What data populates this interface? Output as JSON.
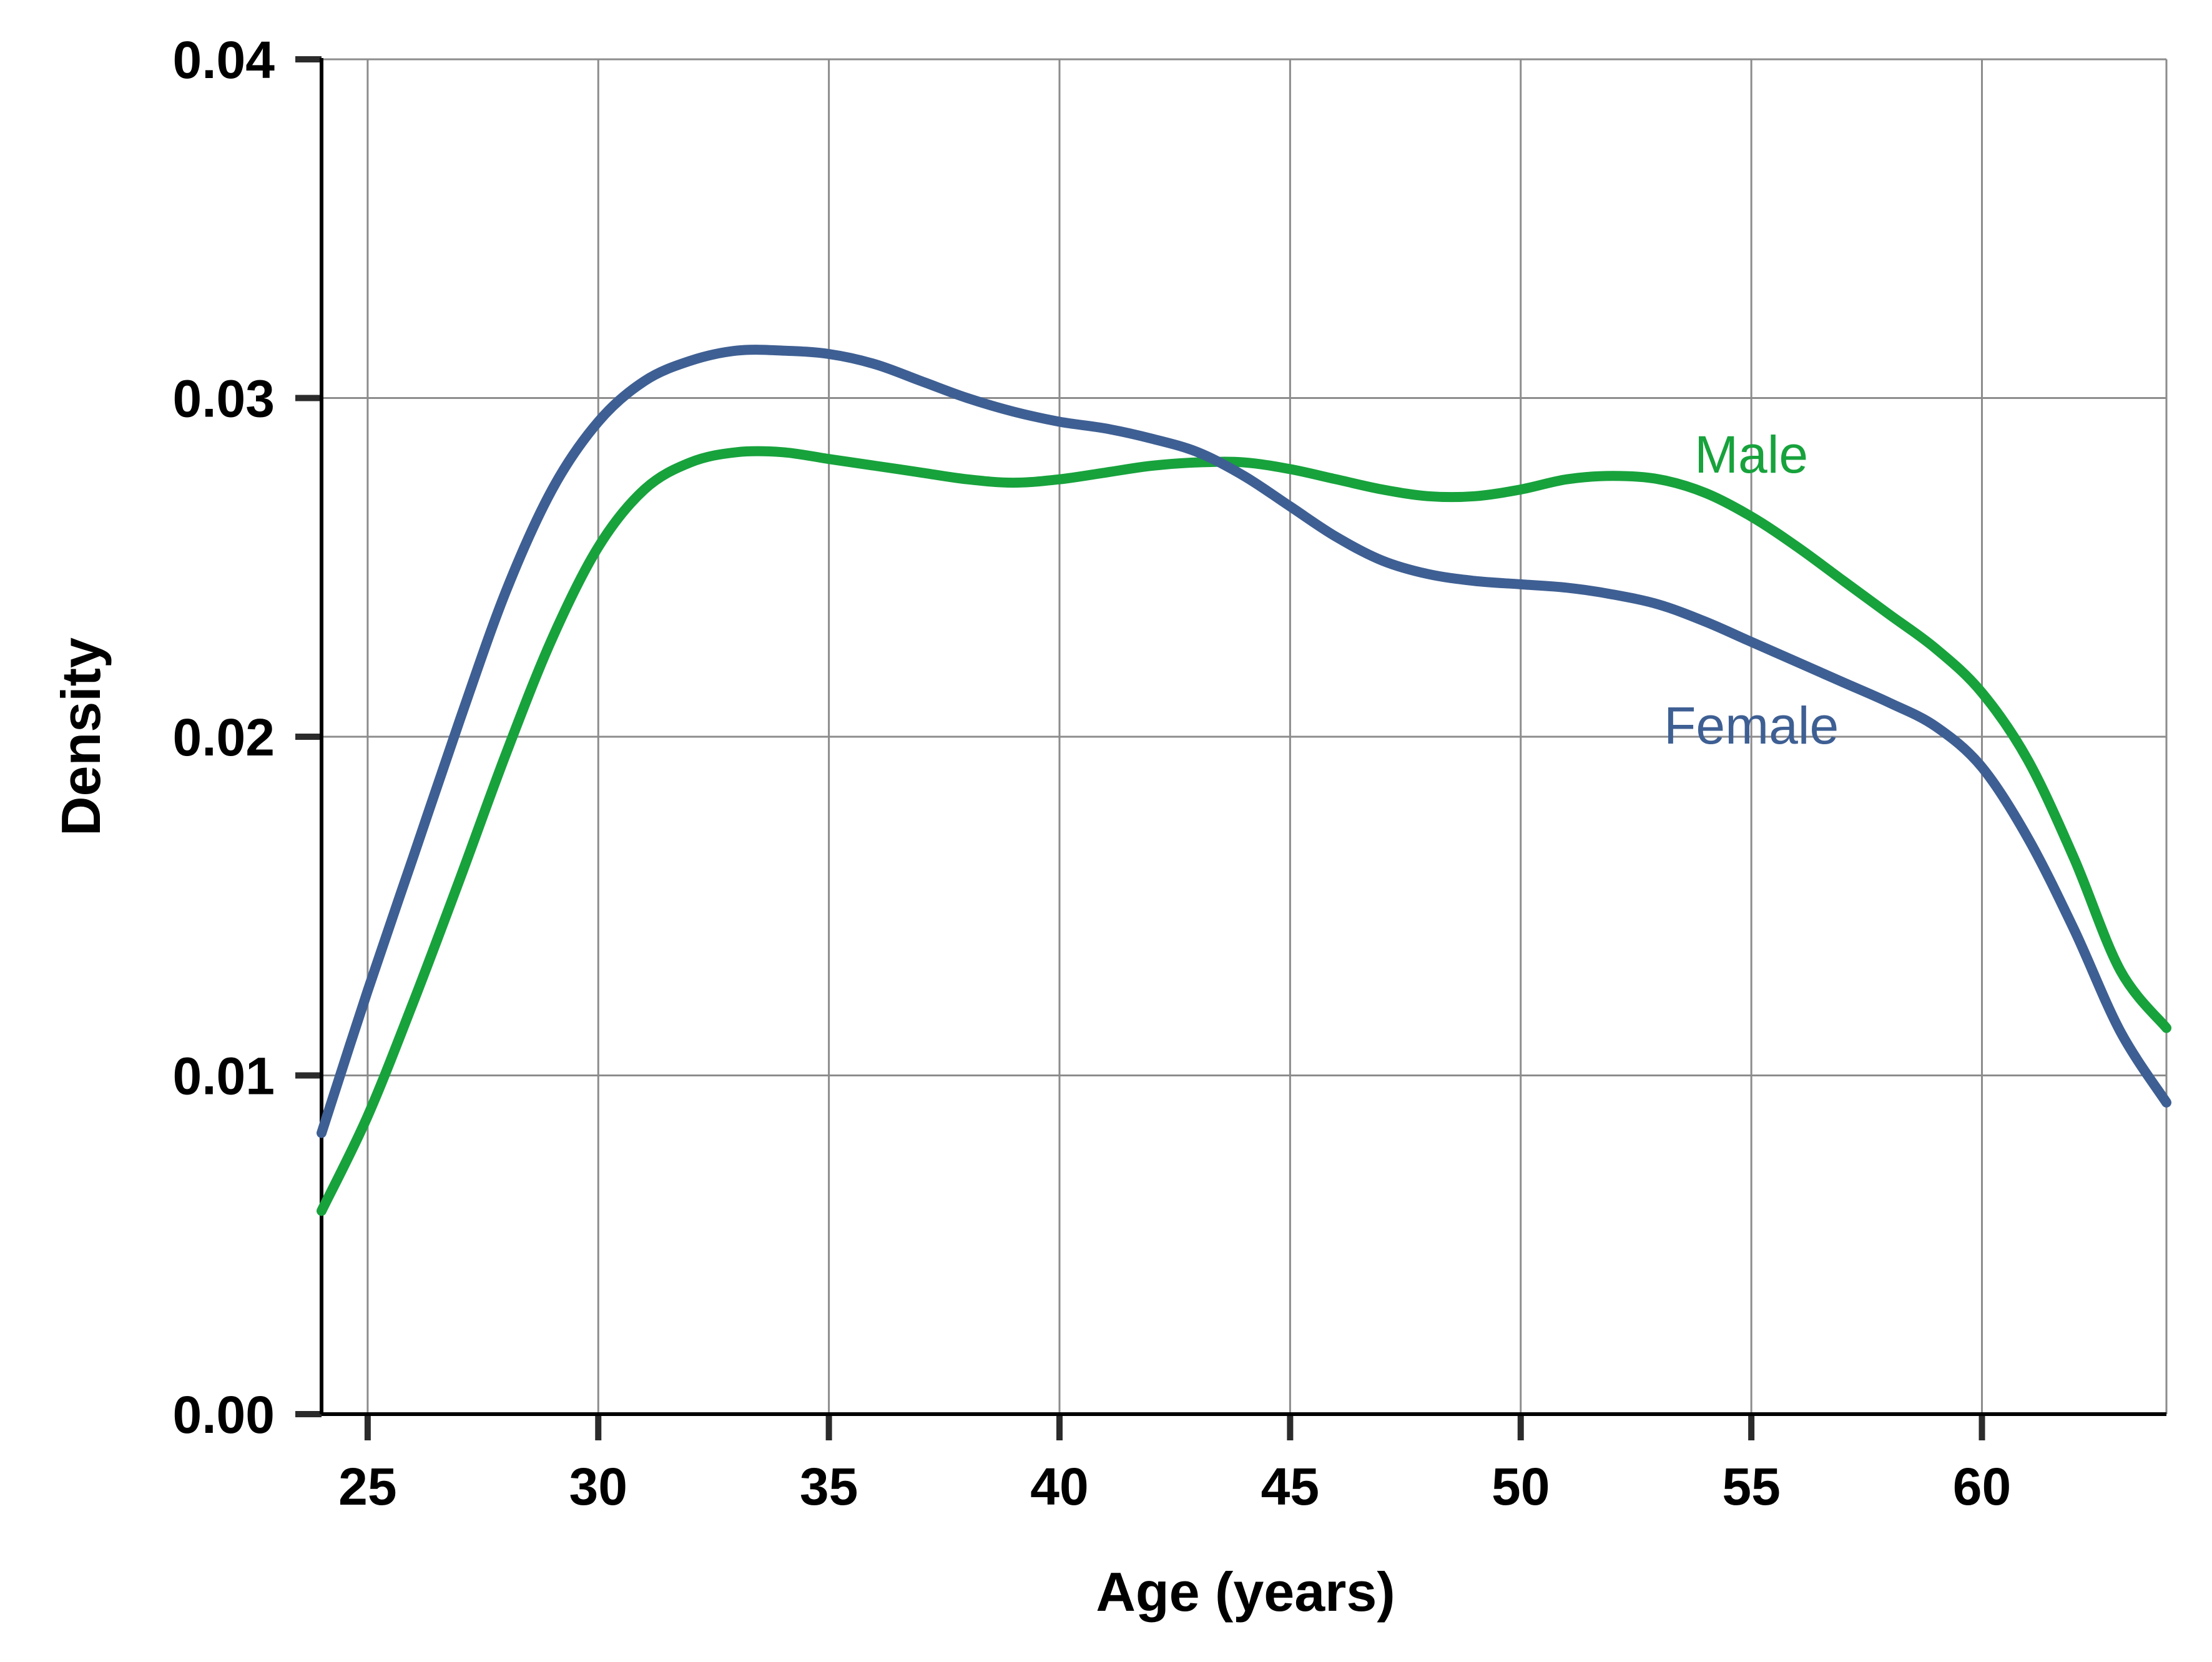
{
  "chart_data": {
    "type": "line",
    "title": "",
    "xlabel": "Age (years)",
    "ylabel": "Density",
    "xlim": [
      24,
      64
    ],
    "ylim": [
      0,
      0.04
    ],
    "x_ticks": [
      "25",
      "30",
      "35",
      "40",
      "45",
      "50",
      "55",
      "60"
    ],
    "y_ticks": [
      "0.00",
      "0.01",
      "0.02",
      "0.03",
      "0.04"
    ],
    "grid": true,
    "legend": "none (direct labels at right)",
    "series": [
      {
        "name": "Male",
        "color": "#17a23c",
        "x": [
          24,
          25,
          26,
          27,
          28,
          29,
          30,
          31,
          32,
          33,
          34,
          35,
          36,
          37,
          38,
          39,
          40,
          41,
          42,
          43,
          44,
          45,
          46,
          47,
          48,
          49,
          50,
          51,
          52,
          53,
          54,
          55,
          56,
          57,
          58,
          59,
          60,
          61,
          62,
          63,
          64
        ],
        "y": [
          0.006,
          0.0088,
          0.0122,
          0.0158,
          0.0195,
          0.0229,
          0.0256,
          0.0273,
          0.0281,
          0.0284,
          0.0284,
          0.0282,
          0.028,
          0.0278,
          0.0276,
          0.0275,
          0.0276,
          0.0278,
          0.028,
          0.0281,
          0.0281,
          0.0279,
          0.0276,
          0.0273,
          0.0271,
          0.0271,
          0.0273,
          0.0276,
          0.0277,
          0.0276,
          0.0272,
          0.0265,
          0.0256,
          0.0246,
          0.0236,
          0.0226,
          0.0213,
          0.0193,
          0.0164,
          0.0131,
          0.0114
        ]
      },
      {
        "name": "Female",
        "color": "#3e5f93",
        "x": [
          24,
          25,
          26,
          27,
          28,
          29,
          30,
          31,
          32,
          33,
          34,
          35,
          36,
          37,
          38,
          39,
          40,
          41,
          42,
          43,
          44,
          45,
          46,
          47,
          48,
          49,
          50,
          51,
          52,
          53,
          54,
          55,
          56,
          57,
          58,
          59,
          60,
          61,
          62,
          63,
          64
        ],
        "y": [
          0.0083,
          0.0125,
          0.0165,
          0.0205,
          0.0243,
          0.0273,
          0.0293,
          0.0305,
          0.0311,
          0.0314,
          0.0314,
          0.0313,
          0.031,
          0.0305,
          0.03,
          0.0296,
          0.0293,
          0.0291,
          0.0288,
          0.0284,
          0.0277,
          0.0268,
          0.0259,
          0.0252,
          0.0248,
          0.0246,
          0.0245,
          0.0244,
          0.0242,
          0.0239,
          0.0234,
          0.0228,
          0.0222,
          0.0216,
          0.021,
          0.0203,
          0.0191,
          0.017,
          0.0143,
          0.0113,
          0.0092
        ]
      }
    ],
    "series_labels": [
      {
        "text": "Male",
        "color": "#17a23c",
        "x": 55,
        "y": 0.0278
      },
      {
        "text": "Female",
        "color": "#3e5f93",
        "x": 55,
        "y": 0.0198
      }
    ]
  }
}
